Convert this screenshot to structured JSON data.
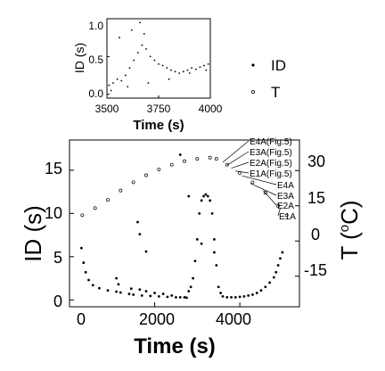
{
  "chart_data": [
    {
      "type": "scatter",
      "role": "main",
      "xlabel": "Time (s)",
      "ylabel_left": "ID (s)",
      "ylabel_right_main": "T (",
      "ylabel_right_sup": "o",
      "ylabel_right_unit": "C)",
      "xlim": [
        0,
        5400
      ],
      "ylim_left": [
        -0.8,
        18.5
      ],
      "ylim_right": [
        -28,
        43
      ],
      "xticks": [
        "0",
        "2000",
        "4000"
      ],
      "xtick_values": [
        0,
        2000,
        4000
      ],
      "yticks_left": [
        "0",
        "5",
        "10",
        "15"
      ],
      "ytick_values_left": [
        0,
        5,
        10,
        15
      ],
      "yticks_right": [
        "-15",
        "0",
        "15",
        "30"
      ],
      "ytick_values_right": [
        -15,
        0,
        15,
        30
      ],
      "legend": [
        {
          "label": "ID",
          "marker": "filled-dot"
        },
        {
          "label": "T",
          "marker": "open-circle"
        }
      ],
      "series": [
        {
          "name": "ID",
          "axis": "left",
          "marker": "filled-dot",
          "points": [
            [
              280,
              6.0
            ],
            [
              330,
              4.3
            ],
            [
              380,
              3.2
            ],
            [
              450,
              2.3
            ],
            [
              550,
              1.7
            ],
            [
              700,
              1.35
            ],
            [
              900,
              1.1
            ],
            [
              1100,
              0.95
            ],
            [
              1150,
              1.8
            ],
            [
              1200,
              0.85
            ],
            [
              1400,
              0.7
            ],
            [
              1450,
              1.3
            ],
            [
              1500,
              0.6
            ],
            [
              1650,
              1.2
            ],
            [
              1700,
              0.5
            ],
            [
              1800,
              1.0
            ],
            [
              1900,
              0.45
            ],
            [
              2000,
              0.8
            ],
            [
              2100,
              0.4
            ],
            [
              2200,
              0.7
            ],
            [
              2300,
              0.35
            ],
            [
              2400,
              0.5
            ],
            [
              2500,
              0.3
            ],
            [
              2600,
              0.3
            ],
            [
              2700,
              0.3
            ],
            [
              2750,
              0.25
            ],
            [
              2800,
              1.0
            ],
            [
              2850,
              1.5
            ],
            [
              2900,
              2.5
            ],
            [
              2950,
              4.5
            ],
            [
              3000,
              7.0
            ],
            [
              3050,
              10.0
            ],
            [
              3100,
              11.5
            ],
            [
              3150,
              12.0
            ],
            [
              3200,
              12.2
            ],
            [
              3250,
              12.0
            ],
            [
              3300,
              11.5
            ],
            [
              3350,
              10.0
            ],
            [
              3400,
              7.0
            ],
            [
              3450,
              4.0
            ],
            [
              3500,
              1.5
            ],
            [
              3550,
              0.8
            ],
            [
              3600,
              0.4
            ],
            [
              3700,
              0.3
            ],
            [
              3800,
              0.3
            ],
            [
              3900,
              0.3
            ],
            [
              4000,
              0.35
            ],
            [
              4100,
              0.4
            ],
            [
              4200,
              0.5
            ],
            [
              4300,
              0.6
            ],
            [
              4400,
              0.8
            ],
            [
              4500,
              1.1
            ],
            [
              4600,
              1.5
            ],
            [
              4700,
              2.0
            ],
            [
              4800,
              2.6
            ],
            [
              4850,
              3.2
            ],
            [
              4900,
              4.0
            ],
            [
              4950,
              4.8
            ],
            [
              5000,
              5.5
            ],
            [
              1100,
              2.5
            ],
            [
              1600,
              9.0
            ],
            [
              1650,
              7.6
            ],
            [
              1800,
              5.6
            ],
            [
              2800,
              12.0
            ],
            [
              2600,
              16.8
            ],
            [
              3100,
              6.5
            ],
            [
              3400,
              5.5
            ]
          ]
        },
        {
          "name": "T",
          "axis": "right",
          "marker": "open-circle",
          "points": [
            [
              300,
              11.0
            ],
            [
              600,
              14.0
            ],
            [
              900,
              17.5
            ],
            [
              1200,
              21.5
            ],
            [
              1500,
              25.0
            ],
            [
              1800,
              28.0
            ],
            [
              2100,
              30.5
            ],
            [
              2400,
              32.5
            ],
            [
              2700,
              34.0
            ],
            [
              3000,
              35.0
            ],
            [
              3300,
              35.5
            ],
            [
              3450,
              35.0
            ],
            [
              3700,
              32.5
            ],
            [
              4000,
              29.0
            ],
            [
              4300,
              25.0
            ],
            [
              4600,
              20.5
            ],
            [
              4900,
              15.0
            ],
            [
              5100,
              11.0
            ]
          ]
        }
      ],
      "annotations": [
        {
          "label": "E4A(Fig.5)",
          "x": 3600,
          "T": 33.5
        },
        {
          "label": "E3A(Fig.5)",
          "x": 3700,
          "T": 32.3
        },
        {
          "label": "E2A(Fig.5)",
          "x": 3800,
          "T": 31.0
        },
        {
          "label": "E1A(Fig.5)",
          "x": 3900,
          "T": 29.8
        },
        {
          "label": "E4A",
          "x": 4050,
          "T": 27.8
        },
        {
          "label": "E3A",
          "x": 4250,
          "T": 24.5
        },
        {
          "label": "E2A",
          "x": 4550,
          "T": 21.5
        },
        {
          "label": "E1A",
          "x": 4950,
          "T": 14.0
        }
      ]
    },
    {
      "type": "scatter",
      "role": "inset",
      "xlabel": "Time (s)",
      "ylabel": "ID (s)",
      "xlim": [
        3500,
        4000
      ],
      "ylim": [
        -0.05,
        1.0
      ],
      "xticks": [
        "3500",
        "3750",
        "4000"
      ],
      "xtick_values": [
        3500,
        3750,
        4000
      ],
      "yticks": [
        "0.0",
        "0.5",
        "1.0"
      ],
      "ytick_values": [
        0.0,
        0.5,
        1.0
      ],
      "series": [
        {
          "name": "ID",
          "marker": "small-dot",
          "points": [
            [
              3510,
              0.12
            ],
            [
              3530,
              0.15
            ],
            [
              3550,
              0.2
            ],
            [
              3570,
              0.18
            ],
            [
              3590,
              0.25
            ],
            [
              3610,
              0.35
            ],
            [
              3630,
              0.45
            ],
            [
              3650,
              0.55
            ],
            [
              3670,
              0.65
            ],
            [
              3690,
              0.6
            ],
            [
              3710,
              0.5
            ],
            [
              3730,
              0.45
            ],
            [
              3750,
              0.4
            ],
            [
              3770,
              0.38
            ],
            [
              3790,
              0.35
            ],
            [
              3810,
              0.32
            ],
            [
              3830,
              0.3
            ],
            [
              3850,
              0.28
            ],
            [
              3870,
              0.3
            ],
            [
              3890,
              0.32
            ],
            [
              3910,
              0.35
            ],
            [
              3930,
              0.33
            ],
            [
              3950,
              0.36
            ],
            [
              3970,
              0.38
            ],
            [
              3990,
              0.4
            ],
            [
              3560,
              0.75
            ],
            [
              3620,
              0.85
            ],
            [
              3660,
              0.95
            ],
            [
              3680,
              0.8
            ],
            [
              3520,
              0.05
            ],
            [
              3600,
              0.1
            ],
            [
              3700,
              0.15
            ],
            [
              3800,
              0.2
            ],
            [
              3900,
              0.28
            ],
            [
              3980,
              0.32
            ]
          ]
        }
      ]
    }
  ]
}
